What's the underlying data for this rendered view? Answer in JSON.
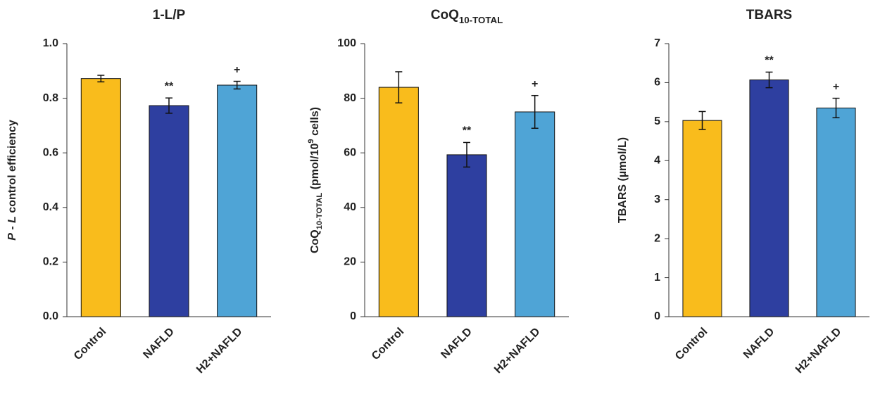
{
  "chart_data": [
    {
      "type": "bar",
      "title_parts": [
        {
          "text": "1-L/P"
        }
      ],
      "ylabel_parts": [
        {
          "text": "P",
          "style": "italic"
        },
        {
          "text": " - "
        },
        {
          "text": "L",
          "style": "italic"
        },
        {
          "text": " control efficiency"
        }
      ],
      "categories": [
        "Control",
        "NAFLD",
        "H2+NAFLD"
      ],
      "values": [
        0.872,
        0.773,
        0.848
      ],
      "errors": [
        0.012,
        0.028,
        0.014
      ],
      "annotations": [
        null,
        "**",
        "+"
      ],
      "colors": [
        "#f9bc1c",
        "#2e3fa0",
        "#4fa4d6"
      ],
      "ylim": [
        0,
        1
      ],
      "yticks": [
        {
          "value": 0,
          "label": "0.0"
        },
        0.2,
        0.4,
        0.6,
        0.8,
        {
          "value": 1,
          "label": "1.0"
        }
      ]
    },
    {
      "type": "bar",
      "title_parts": [
        {
          "text": "CoQ"
        },
        {
          "text": "10-TOTAL",
          "style": "sub"
        }
      ],
      "ylabel_parts": [
        {
          "text": "CoQ"
        },
        {
          "text": "10-TOTAL",
          "style": "sub"
        },
        {
          "text": " (pmol/10"
        },
        {
          "text": "9",
          "style": "sup"
        },
        {
          "text": " cells)"
        }
      ],
      "categories": [
        "Control",
        "NAFLD",
        "H2+NAFLD"
      ],
      "values": [
        84,
        59.3,
        75
      ],
      "errors": [
        5.7,
        4.5,
        6
      ],
      "annotations": [
        null,
        "**",
        "+"
      ],
      "colors": [
        "#f9bc1c",
        "#2e3fa0",
        "#4fa4d6"
      ],
      "ylim": [
        0,
        100
      ],
      "yticks": [
        0,
        20,
        40,
        60,
        80,
        100
      ]
    },
    {
      "type": "bar",
      "title_parts": [
        {
          "text": "TBARS"
        }
      ],
      "ylabel_parts": [
        {
          "text": "TBARS (µmol/L)"
        }
      ],
      "categories": [
        "Control",
        "NAFLD",
        "H2+NAFLD"
      ],
      "values": [
        5.03,
        6.07,
        5.35
      ],
      "errors": [
        0.23,
        0.2,
        0.25
      ],
      "annotations": [
        null,
        "**",
        "+"
      ],
      "colors": [
        "#f9bc1c",
        "#2e3fa0",
        "#4fa4d6"
      ],
      "ylim": [
        0,
        7
      ],
      "yticks": [
        0,
        1,
        2,
        3,
        4,
        5,
        6,
        7
      ]
    }
  ]
}
